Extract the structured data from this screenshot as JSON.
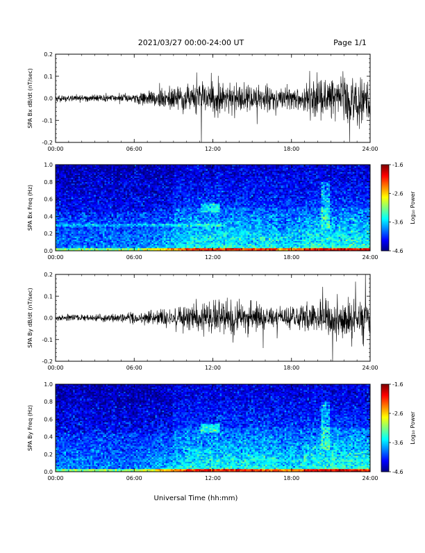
{
  "header": {
    "title": "2021/03/27  00:00-24:00 UT",
    "page": "Page 1/1"
  },
  "xlabel": "Universal Time (hh:mm)",
  "colorbar": {
    "label": "Log₁₀ Power",
    "ticks": [
      "-1.6",
      "-2.6",
      "-3.6",
      "-4.6"
    ],
    "range": [
      -4.6,
      -1.6
    ]
  },
  "chart_data": [
    {
      "type": "line",
      "ylabel": "SPA Bx dB/dt (nT/sec)",
      "xlim": [
        0,
        24
      ],
      "ylim": [
        -0.2,
        0.2
      ],
      "xticks": [
        "00:00",
        "06:00",
        "12:00",
        "18:00",
        "24:00"
      ],
      "yticks": [
        "-0.2",
        "-0.1",
        "0.0",
        "0.1",
        "0.2"
      ],
      "envelope": {
        "hour": [
          0,
          3,
          6,
          8,
          10,
          12,
          14,
          16,
          18,
          20,
          22,
          24
        ],
        "amplitude": [
          0.02,
          0.02,
          0.03,
          0.06,
          0.08,
          0.1,
          0.09,
          0.08,
          0.07,
          0.11,
          0.13,
          0.12
        ]
      }
    },
    {
      "type": "heatmap",
      "ylabel": "SPA Bx Freq (Hz)",
      "xlim": [
        0,
        24
      ],
      "ylim": [
        0.0,
        1.0
      ],
      "xticks": [
        "00:00",
        "06:00",
        "12:00",
        "18:00",
        "24:00"
      ],
      "yticks": [
        "0.0",
        "0.2",
        "0.4",
        "0.6",
        "0.8",
        "1.0"
      ],
      "zlim": [
        -4.6,
        -1.6
      ]
    },
    {
      "type": "line",
      "ylabel": "SPA By dB/dt (nT/sec)",
      "xlim": [
        0,
        24
      ],
      "ylim": [
        -0.2,
        0.2
      ],
      "xticks": [
        "00:00",
        "06:00",
        "12:00",
        "18:00",
        "24:00"
      ],
      "yticks": [
        "-0.2",
        "-0.1",
        "0.0",
        "0.1",
        "0.2"
      ],
      "envelope": {
        "hour": [
          0,
          3,
          6,
          8,
          10,
          12,
          14,
          16,
          18,
          20,
          22,
          24
        ],
        "amplitude": [
          0.02,
          0.02,
          0.03,
          0.05,
          0.07,
          0.1,
          0.1,
          0.08,
          0.06,
          0.09,
          0.12,
          0.12
        ]
      }
    },
    {
      "type": "heatmap",
      "ylabel": "SPA By Freq (Hz)",
      "xlim": [
        0,
        24
      ],
      "ylim": [
        0.0,
        1.0
      ],
      "xticks": [
        "00:00",
        "06:00",
        "12:00",
        "18:00",
        "24:00"
      ],
      "yticks": [
        "0.0",
        "0.2",
        "0.4",
        "0.6",
        "0.8",
        "1.0"
      ],
      "zlim": [
        -4.6,
        -1.6
      ]
    }
  ]
}
